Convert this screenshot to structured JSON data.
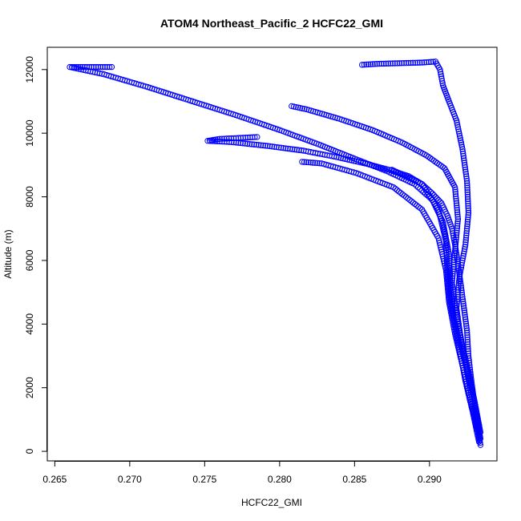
{
  "chart_data": {
    "type": "scatter",
    "title": "ATOM4 Northeast_Pacific_2 HCFC22_GMI",
    "xlabel": "HCFC22_GMI",
    "ylabel": "Altitude (m)",
    "xlim": [
      0.2645,
      0.2945
    ],
    "ylim": [
      -300,
      12700
    ],
    "x_ticks": [
      0.265,
      0.27,
      0.275,
      0.28,
      0.285,
      0.29
    ],
    "x_tick_labels": [
      "0.265",
      "0.270",
      "0.275",
      "0.280",
      "0.285",
      "0.290"
    ],
    "y_ticks": [
      0,
      2000,
      4000,
      6000,
      8000,
      10000,
      12000
    ],
    "y_tick_labels": [
      "0",
      "2000",
      "4000",
      "6000",
      "8000",
      "10000",
      "12000"
    ],
    "marker": "open-circle",
    "color": "#0000ff",
    "grid": false,
    "series": [
      {
        "x": [
          0.2934,
          0.2932,
          0.293,
          0.2928,
          0.2926,
          0.2925,
          0.2923,
          0.2921,
          0.2919,
          0.2917,
          0.2915,
          0.2912,
          0.2908,
          0.2902,
          0.2895,
          0.2886,
          0.2873,
          0.2857,
          0.2838,
          0.2816,
          0.2792,
          0.2768,
          0.2752,
          0.276,
          0.2785
        ],
        "y": [
          200,
          800,
          1500,
          2200,
          3000,
          3800,
          4500,
          5200,
          5900,
          6500,
          7000,
          7400,
          7800,
          8100,
          8400,
          8650,
          8850,
          9050,
          9250,
          9450,
          9600,
          9720,
          9760,
          9820,
          9880
        ]
      },
      {
        "x": [
          0.2933,
          0.2929,
          0.2924,
          0.292,
          0.2916,
          0.2914,
          0.2913,
          0.2909,
          0.2902,
          0.289,
          0.2872,
          0.285,
          0.2826,
          0.28,
          0.2772,
          0.2742,
          0.2712,
          0.2683,
          0.266,
          0.267,
          0.2688
        ],
        "y": [
          300,
          1200,
          2200,
          3200,
          4200,
          5200,
          6200,
          7200,
          7900,
          8400,
          8800,
          9200,
          9650,
          10100,
          10550,
          11000,
          11450,
          11850,
          12080,
          12080,
          12080
        ]
      },
      {
        "x": [
          0.2934,
          0.2931,
          0.2927,
          0.2922,
          0.2918,
          0.2915,
          0.2917,
          0.2919,
          0.2917,
          0.291,
          0.2898,
          0.2882,
          0.2862,
          0.284,
          0.2818,
          0.2808
        ],
        "y": [
          400,
          1300,
          2300,
          3300,
          4300,
          5300,
          6300,
          7300,
          8300,
          8900,
          9300,
          9700,
          10100,
          10450,
          10750,
          10850
        ]
      },
      {
        "x": [
          0.2933,
          0.2929,
          0.2925,
          0.2921,
          0.2918,
          0.292,
          0.2924,
          0.2926,
          0.2925,
          0.2922,
          0.2918,
          0.2913,
          0.2909,
          0.2907,
          0.2904,
          0.2895,
          0.288,
          0.2865,
          0.2855
        ],
        "y": [
          500,
          1500,
          2500,
          3500,
          4500,
          5500,
          6500,
          7500,
          8500,
          9500,
          10400,
          11000,
          11500,
          12000,
          12250,
          12220,
          12200,
          12180,
          12150
        ]
      },
      {
        "x": [
          0.2934,
          0.293,
          0.2925,
          0.2919,
          0.2914,
          0.2912,
          0.2911,
          0.2906,
          0.2895,
          0.2875
        ],
        "y": [
          600,
          1600,
          2600,
          3600,
          4600,
          5600,
          6600,
          7600,
          8400,
          8850
        ]
      },
      {
        "x": [
          0.2932,
          0.2927,
          0.2922,
          0.2917,
          0.2913,
          0.2911,
          0.2906,
          0.2895,
          0.2876,
          0.2851,
          0.2828,
          0.2815
        ],
        "y": [
          700,
          1700,
          2700,
          3700,
          4700,
          5700,
          6700,
          7600,
          8300,
          8750,
          9050,
          9100
        ]
      }
    ]
  }
}
